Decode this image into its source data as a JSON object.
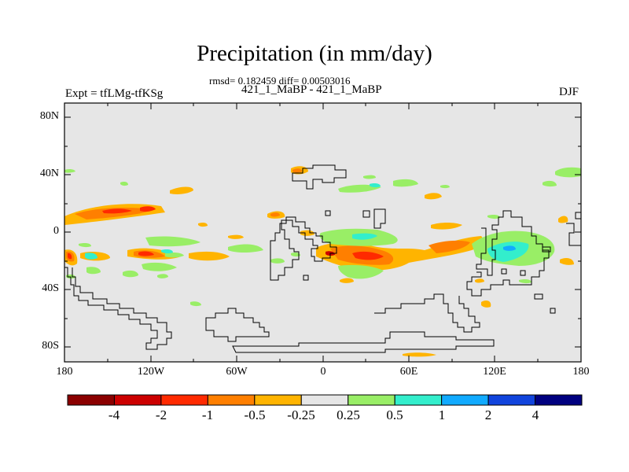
{
  "title": "Precipitation (in mm/day)",
  "stats": "rmsd= 0.182459 diff= 0.00503016",
  "subtitle": "421_1_MaBP - 421_1_MaBP",
  "left_label": "Expt = tfLMg-tfKSg",
  "right_label": "DJF",
  "map": {
    "y_ticks": [
      "80N",
      "40N",
      "0",
      "40S",
      "80S"
    ],
    "x_ticks": [
      "180",
      "120W",
      "60W",
      "0",
      "60E",
      "120E",
      "180"
    ],
    "lon_range": [
      -180,
      180
    ],
    "lat_range": [
      -90,
      90
    ],
    "background_color": "#e6e6e6"
  },
  "colorbar": {
    "labels": [
      "-4",
      "-2",
      "-1",
      "-0.5",
      "-0.25",
      "0.25",
      "0.5",
      "1",
      "2",
      "4"
    ],
    "colors": [
      "#8b0000",
      "#cc0000",
      "#ff2a00",
      "#ff7f00",
      "#ffb400",
      "#e6e6e6",
      "#99ee66",
      "#33eecc",
      "#11aaff",
      "#1144dd",
      "#000080"
    ]
  }
}
